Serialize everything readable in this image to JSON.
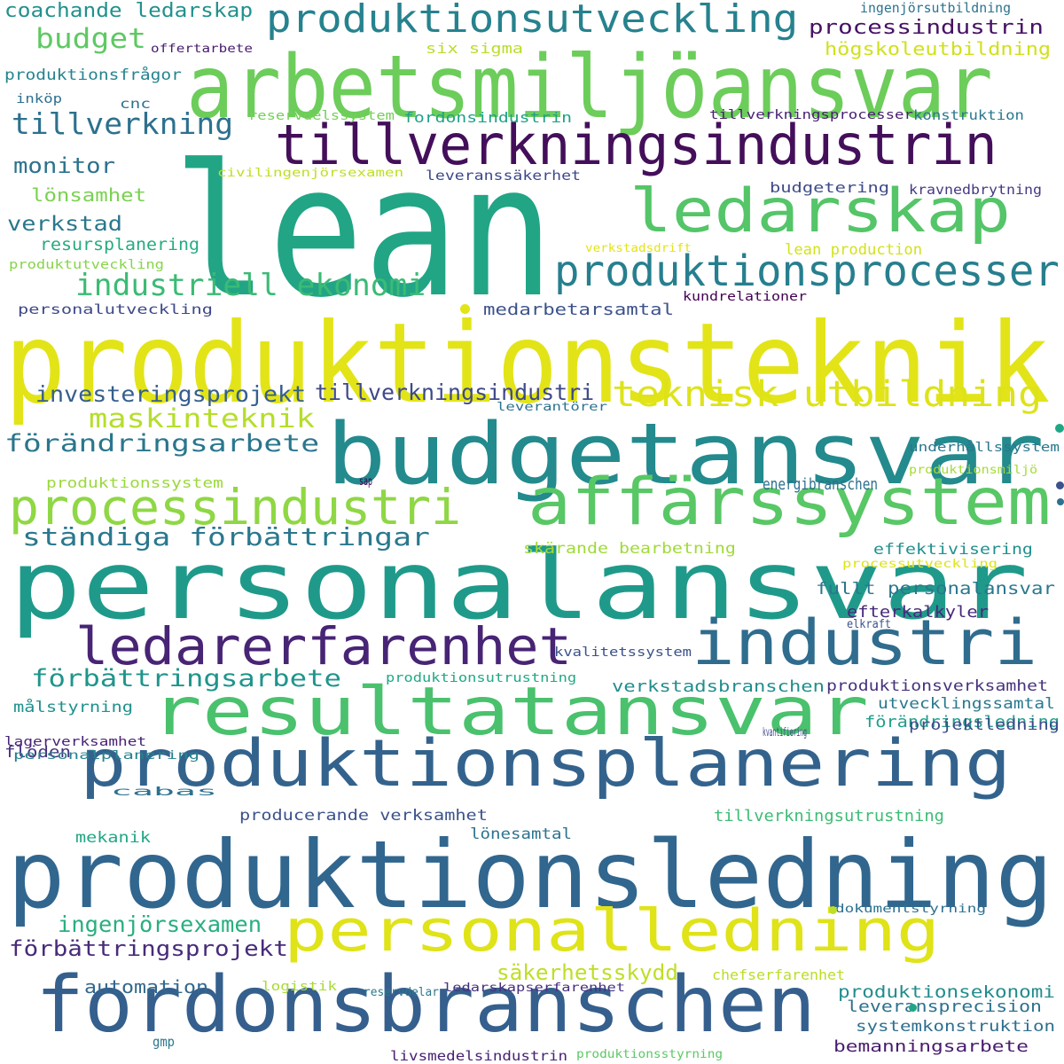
{
  "words": [
    {
      "text": "lean",
      "color": "#21a585"
    },
    {
      "text": "produktionsteknik",
      "color": "#e2e418"
    },
    {
      "text": "personalansvar",
      "color": "#1f9a8a"
    },
    {
      "text": "produktionsledning",
      "color": "#31668e"
    },
    {
      "text": "arbetsmiljöansvar",
      "color": "#6ccd5a"
    },
    {
      "text": "budgetansvar",
      "color": "#238a8d"
    },
    {
      "text": "fordonsbranschen",
      "color": "#355f8d"
    },
    {
      "text": "resultatansvar",
      "color": "#4ac16d"
    },
    {
      "text": "produktionsplanering",
      "color": "#33638d"
    },
    {
      "text": "affärssystem",
      "color": "#58c765"
    },
    {
      "text": "tillverkningsindustrin",
      "color": "#440f5a"
    },
    {
      "text": "personalledning",
      "color": "#dfe318"
    },
    {
      "text": "industri",
      "color": "#2f6c8e"
    },
    {
      "text": "ledarskap",
      "color": "#54c568"
    },
    {
      "text": "ledarerfarenhet",
      "color": "#482475"
    },
    {
      "text": "processindustri",
      "color": "#8fd744"
    },
    {
      "text": "produktionsprocesser",
      "color": "#277f8e"
    },
    {
      "text": "produktionsutveckling",
      "color": "#26828e"
    },
    {
      "text": "teknisk utbildning",
      "color": "#dde318"
    },
    {
      "text": "industriell ekonomi",
      "color": "#3bbb75"
    },
    {
      "text": "ständiga förbättringar",
      "color": "#2a788e"
    },
    {
      "text": "förändringsarbete",
      "color": "#2a768e"
    },
    {
      "text": "maskinteknik",
      "color": "#b5de2b"
    },
    {
      "text": "förbättringsarbete",
      "color": "#1f958b"
    },
    {
      "text": "tillverkning",
      "color": "#2d708e"
    },
    {
      "text": "investeringsprojekt",
      "color": "#355f8d"
    },
    {
      "text": "tillverkningsindustri",
      "color": "#3e4989"
    },
    {
      "text": "ingenjörsexamen",
      "color": "#29af7f"
    },
    {
      "text": "förbättringsprojekt",
      "color": "#472c7a"
    },
    {
      "text": "säkerhetsskydd",
      "color": "#bddf26"
    },
    {
      "text": "budget",
      "color": "#5ec962"
    },
    {
      "text": "coachande ledarskap",
      "color": "#21918c"
    },
    {
      "text": "processindustrin",
      "color": "#471164"
    },
    {
      "text": "högskoleutbildning",
      "color": "#d0e11c"
    },
    {
      "text": "monitor",
      "color": "#2c728e"
    },
    {
      "text": "verkstad",
      "color": "#2a778e"
    },
    {
      "text": "lönsamhet",
      "color": "#7ad151"
    },
    {
      "text": "resursplanering",
      "color": "#25ab82"
    },
    {
      "text": "medarbetarsamtal",
      "color": "#3b528b"
    },
    {
      "text": "automation",
      "color": "#31688e"
    },
    {
      "text": "produktionsekonomi",
      "color": "#228c8d"
    },
    {
      "text": "leveransprecision",
      "color": "#2c718e"
    },
    {
      "text": "systemkonstruktion",
      "color": "#2e6e8e"
    },
    {
      "text": "bemanningsarbete",
      "color": "#481b6d"
    },
    {
      "text": "verkstadsbranschen",
      "color": "#228d8d"
    },
    {
      "text": "produktionsverksamhet",
      "color": "#46327e"
    },
    {
      "text": "fullt personalansvar",
      "color": "#2a778e"
    },
    {
      "text": "efterkalkyler",
      "color": "#472a7a"
    },
    {
      "text": "effektivisering",
      "color": "#21908d"
    },
    {
      "text": "energibranschen",
      "color": "#2d708e"
    },
    {
      "text": "skärande bearbetning",
      "color": "#a0da39"
    },
    {
      "text": "förändringsledning",
      "color": "#1f9e89"
    },
    {
      "text": "utvecklingssamtal",
      "color": "#2a788e"
    },
    {
      "text": "projektledning",
      "color": "#3e4a89"
    },
    {
      "text": "tillverkningsutrustning",
      "color": "#3dbc74"
    },
    {
      "text": "producerande verksamhet",
      "color": "#3b528b"
    },
    {
      "text": "lönesamtal",
      "color": "#2c738e"
    },
    {
      "text": "mekanik",
      "color": "#21a685"
    },
    {
      "text": "målstyrning",
      "color": "#20928c"
    },
    {
      "text": "flöden",
      "color": "#46327e"
    },
    {
      "text": "six sigma",
      "color": "#b8de29"
    },
    {
      "text": "budgetering",
      "color": "#3e4a89"
    },
    {
      "text": "kravnedbrytning",
      "color": "#443a83"
    },
    {
      "text": "lean production",
      "color": "#d2e21b"
    },
    {
      "text": "leveranssäkerhet",
      "color": "#3f4889"
    },
    {
      "text": "fordonsindustrin",
      "color": "#1fa188"
    },
    {
      "text": "produktionsfrågor",
      "color": "#25838e"
    },
    {
      "text": "cnc",
      "color": "#2d718e"
    },
    {
      "text": "inköp",
      "color": "#2d708e"
    },
    {
      "text": "ingenjörsutbildning",
      "color": "#2c738e"
    },
    {
      "text": "tillverkningsprocesser",
      "color": "#482173"
    },
    {
      "text": "konstruktion",
      "color": "#2a778e"
    },
    {
      "text": "produktionssystem",
      "color": "#9bd93c"
    },
    {
      "text": "reservdelssystem",
      "color": "#73d056"
    },
    {
      "text": "civilingenjörsexamen",
      "color": "#bddf26"
    },
    {
      "text": "produktutveckling",
      "color": "#86d549"
    },
    {
      "text": "personalutveckling",
      "color": "#3e4989"
    },
    {
      "text": "verkstadsdrift",
      "color": "#e2e418"
    },
    {
      "text": "kundrelationer",
      "color": "#440154"
    },
    {
      "text": "leverantörer",
      "color": "#2c728e"
    },
    {
      "text": "underhållssystem",
      "color": "#2a778e"
    },
    {
      "text": "produktionsmiljö",
      "color": "#a5db36"
    },
    {
      "text": "processutveckling",
      "color": "#dde318"
    },
    {
      "text": "kvalitetssystem",
      "color": "#3b528b"
    },
    {
      "text": "elkraft",
      "color": "#3b528b"
    },
    {
      "text": "produktionsutrustning",
      "color": "#22a884"
    },
    {
      "text": "sap",
      "color": "#440154"
    },
    {
      "text": "lagerverksamhet",
      "color": "#482475"
    },
    {
      "text": "personalplanering",
      "color": "#26828e"
    },
    {
      "text": "kvantifiering",
      "color": "#3e4989"
    },
    {
      "text": "cabas",
      "color": "#2c728e"
    },
    {
      "text": "dokumentstyrning",
      "color": "#2c718e"
    },
    {
      "text": "logistik",
      "color": "#a8db34"
    },
    {
      "text": "reservdelar",
      "color": "#2a788e"
    },
    {
      "text": "ledarskapserfarenhet",
      "color": "#46307e"
    },
    {
      "text": "chefserfarenhet",
      "color": "#bade28"
    },
    {
      "text": "gmp",
      "color": "#2a788e"
    },
    {
      "text": "livsmedelsindustrin",
      "color": "#482173"
    },
    {
      "text": "produktionsstyrning",
      "color": "#5cc863"
    },
    {
      "text": "offertarbete",
      "color": "#481b6d"
    }
  ],
  "dots": [
    {
      "color": "#e2e418"
    },
    {
      "color": "#21a685"
    },
    {
      "color": "#3b528b"
    },
    {
      "color": "#2c718e"
    },
    {
      "color": "#bddf26"
    },
    {
      "color": "#21a685"
    }
  ]
}
